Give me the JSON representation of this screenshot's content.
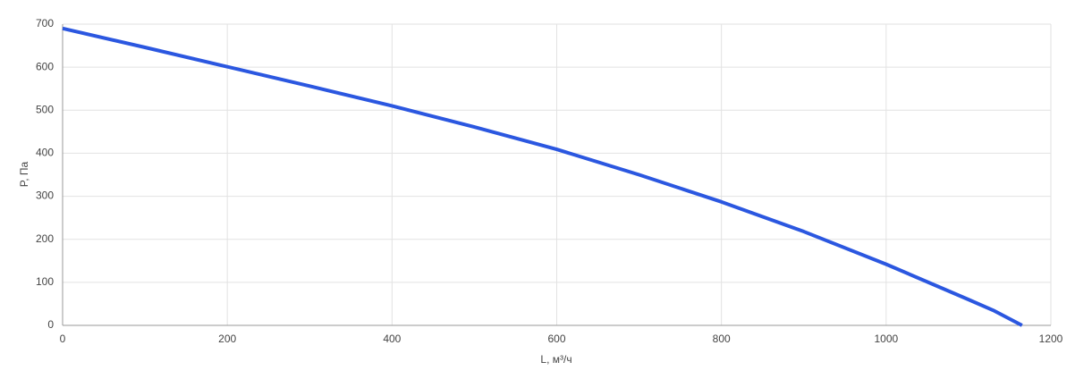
{
  "chart_data": {
    "type": "line",
    "x_label": "L, м³/ч",
    "y_label": "P, Па",
    "x": [
      0,
      100,
      200,
      300,
      400,
      500,
      600,
      700,
      800,
      900,
      1000,
      1100,
      1130,
      1165
    ],
    "series": [
      {
        "name": "P",
        "color": "#2b57e0",
        "values": [
          690,
          646,
          601,
          556,
          510,
          461,
          409,
          350,
          287,
          218,
          142,
          60,
          35,
          0
        ]
      }
    ],
    "xlim": [
      0,
      1200
    ],
    "xticks": [
      0,
      200,
      400,
      600,
      800,
      1000,
      1200
    ],
    "ylim": [
      0,
      700
    ],
    "yticks": [
      0,
      100,
      200,
      300,
      400,
      500,
      600,
      700
    ],
    "grid": true
  }
}
